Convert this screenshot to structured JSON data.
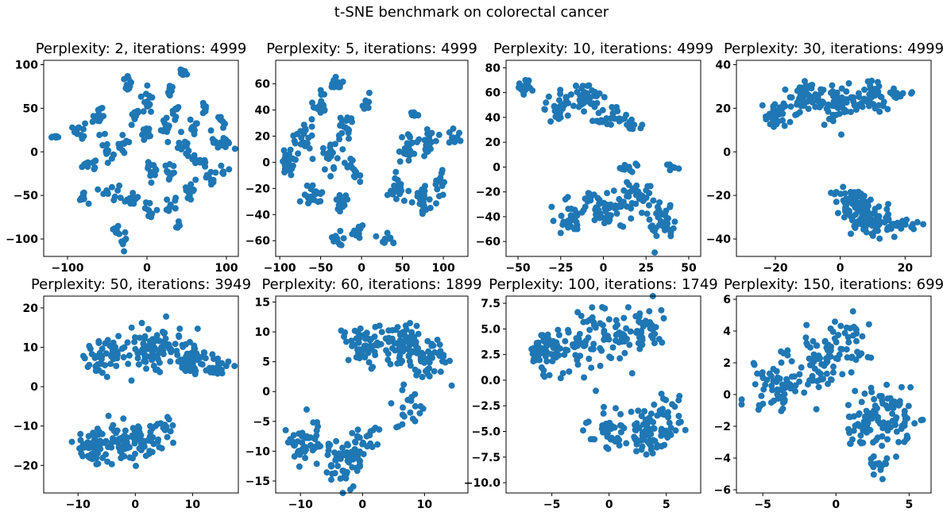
{
  "figure": {
    "suptitle": "t-SNE benchmark on colorectal cancer",
    "marker_color": "#1f77b4"
  },
  "chart_data": [
    {
      "type": "scatter",
      "title": "Perplexity: 2, iterations: 4999",
      "xlim": [
        -130,
        115
      ],
      "ylim": [
        -120,
        105
      ],
      "xticks": [
        -100,
        0,
        100
      ],
      "yticks": [
        -100,
        -50,
        0,
        50,
        100
      ],
      "clusters": [
        {
          "cx": -115,
          "cy": 17,
          "sx": 4,
          "sy": 2,
          "n": 6
        },
        {
          "cx": -85,
          "cy": 25,
          "sx": 6,
          "sy": 8,
          "n": 14
        },
        {
          "cx": -75,
          "cy": -15,
          "sx": 10,
          "sy": 6,
          "n": 12
        },
        {
          "cx": -80,
          "cy": -50,
          "sx": 6,
          "sy": 10,
          "n": 10
        },
        {
          "cx": -60,
          "cy": 40,
          "sx": 8,
          "sy": 12,
          "n": 14
        },
        {
          "cx": -50,
          "cy": 0,
          "sx": 8,
          "sy": 10,
          "n": 14
        },
        {
          "cx": -45,
          "cy": -45,
          "sx": 8,
          "sy": 8,
          "n": 12
        },
        {
          "cx": -40,
          "cy": -90,
          "sx": 8,
          "sy": 5,
          "n": 8
        },
        {
          "cx": -30,
          "cy": 10,
          "sx": 6,
          "sy": 10,
          "n": 10
        },
        {
          "cx": -25,
          "cy": 80,
          "sx": 6,
          "sy": 10,
          "n": 10
        },
        {
          "cx": -20,
          "cy": -55,
          "sx": 8,
          "sy": 6,
          "n": 10
        },
        {
          "cx": -30,
          "cy": -105,
          "sx": 4,
          "sy": 5,
          "n": 5
        },
        {
          "cx": -15,
          "cy": 40,
          "sx": 6,
          "sy": 12,
          "n": 12
        },
        {
          "cx": 0,
          "cy": 60,
          "sx": 6,
          "sy": 12,
          "n": 12
        },
        {
          "cx": 0,
          "cy": 20,
          "sx": 6,
          "sy": 6,
          "n": 10
        },
        {
          "cx": 5,
          "cy": -20,
          "sx": 6,
          "sy": 10,
          "n": 12
        },
        {
          "cx": 5,
          "cy": -65,
          "sx": 6,
          "sy": 8,
          "n": 10
        },
        {
          "cx": 25,
          "cy": 25,
          "sx": 6,
          "sy": 10,
          "n": 12
        },
        {
          "cx": 30,
          "cy": -25,
          "sx": 6,
          "sy": 10,
          "n": 12
        },
        {
          "cx": 30,
          "cy": 70,
          "sx": 6,
          "sy": 6,
          "n": 8
        },
        {
          "cx": 35,
          "cy": 45,
          "sx": 6,
          "sy": 6,
          "n": 8
        },
        {
          "cx": 30,
          "cy": -60,
          "sx": 8,
          "sy": 8,
          "n": 10
        },
        {
          "cx": 40,
          "cy": -85,
          "sx": 5,
          "sy": 4,
          "n": 6
        },
        {
          "cx": 45,
          "cy": 5,
          "sx": 6,
          "sy": 10,
          "n": 12
        },
        {
          "cx": 45,
          "cy": 90,
          "sx": 6,
          "sy": 4,
          "n": 8
        },
        {
          "cx": 55,
          "cy": -45,
          "sx": 6,
          "sy": 10,
          "n": 12
        },
        {
          "cx": 60,
          "cy": 30,
          "sx": 6,
          "sy": 10,
          "n": 12
        },
        {
          "cx": 65,
          "cy": -10,
          "sx": 6,
          "sy": 8,
          "n": 10
        },
        {
          "cx": 75,
          "cy": 50,
          "sx": 6,
          "sy": 6,
          "n": 8
        },
        {
          "cx": 80,
          "cy": -30,
          "sx": 6,
          "sy": 8,
          "n": 10
        },
        {
          "cx": 85,
          "cy": 15,
          "sx": 6,
          "sy": 8,
          "n": 10
        },
        {
          "cx": 95,
          "cy": 35,
          "sx": 5,
          "sy": 5,
          "n": 8
        },
        {
          "cx": 100,
          "cy": 10,
          "sx": 6,
          "sy": 6,
          "n": 10
        },
        {
          "cx": 95,
          "cy": -20,
          "sx": 5,
          "sy": 5,
          "n": 6
        }
      ]
    },
    {
      "type": "scatter",
      "title": "Perplexity: 5, iterations: 4999",
      "xlim": [
        -105,
        130
      ],
      "ylim": [
        -72,
        78
      ],
      "xticks": [
        -100,
        -50,
        0,
        50,
        100
      ],
      "yticks": [
        -60,
        -40,
        -20,
        0,
        20,
        40,
        60
      ],
      "clusters": [
        {
          "cx": -90,
          "cy": 0,
          "sx": 8,
          "sy": 10,
          "n": 22
        },
        {
          "cx": -70,
          "cy": 20,
          "sx": 10,
          "sy": 10,
          "n": 22
        },
        {
          "cx": -60,
          "cy": -25,
          "sx": 10,
          "sy": 8,
          "n": 20
        },
        {
          "cx": -50,
          "cy": 45,
          "sx": 8,
          "sy": 8,
          "n": 16
        },
        {
          "cx": -40,
          "cy": 5,
          "sx": 10,
          "sy": 10,
          "n": 22
        },
        {
          "cx": -30,
          "cy": 60,
          "sx": 10,
          "sy": 6,
          "n": 14
        },
        {
          "cx": -25,
          "cy": -30,
          "sx": 8,
          "sy": 6,
          "n": 14
        },
        {
          "cx": -20,
          "cy": 25,
          "sx": 8,
          "sy": 10,
          "n": 18
        },
        {
          "cx": -10,
          "cy": -5,
          "sx": 8,
          "sy": 10,
          "n": 14
        },
        {
          "cx": -30,
          "cy": -60,
          "sx": 6,
          "sy": 5,
          "n": 10
        },
        {
          "cx": -5,
          "cy": -52,
          "sx": 6,
          "sy": 5,
          "n": 10
        },
        {
          "cx": 5,
          "cy": 45,
          "sx": 6,
          "sy": 5,
          "n": 8
        },
        {
          "cx": 30,
          "cy": -58,
          "sx": 10,
          "sy": 4,
          "n": 10
        },
        {
          "cx": 45,
          "cy": -20,
          "sx": 10,
          "sy": 10,
          "n": 22
        },
        {
          "cx": 55,
          "cy": 10,
          "sx": 10,
          "sy": 10,
          "n": 22
        },
        {
          "cx": 65,
          "cy": 38,
          "sx": 6,
          "sy": 4,
          "n": 8
        },
        {
          "cx": 75,
          "cy": -30,
          "sx": 10,
          "sy": 10,
          "n": 24
        },
        {
          "cx": 80,
          "cy": 15,
          "sx": 10,
          "sy": 10,
          "n": 20
        },
        {
          "cx": 95,
          "cy": -15,
          "sx": 6,
          "sy": 10,
          "n": 12
        },
        {
          "cx": 115,
          "cy": 20,
          "sx": 6,
          "sy": 6,
          "n": 12
        }
      ]
    },
    {
      "type": "scatter",
      "title": "Perplexity: 10, iterations: 4999",
      "xlim": [
        -57,
        57
      ],
      "ylim": [
        -72,
        86
      ],
      "xticks": [
        -50,
        -25,
        0,
        25,
        50
      ],
      "yticks": [
        -60,
        -40,
        -20,
        0,
        20,
        40,
        60,
        80
      ],
      "clusters": [
        {
          "cx": -45,
          "cy": 65,
          "sx": 5,
          "sy": 6,
          "n": 26
        },
        {
          "cx": -25,
          "cy": 50,
          "sx": 8,
          "sy": 10,
          "n": 34
        },
        {
          "cx": -10,
          "cy": 55,
          "sx": 8,
          "sy": 10,
          "n": 40
        },
        {
          "cx": 5,
          "cy": 40,
          "sx": 8,
          "sy": 8,
          "n": 24
        },
        {
          "cx": 18,
          "cy": 32,
          "sx": 4,
          "sy": 6,
          "n": 10
        },
        {
          "cx": -20,
          "cy": -40,
          "sx": 8,
          "sy": 10,
          "n": 34
        },
        {
          "cx": 0,
          "cy": -35,
          "sx": 10,
          "sy": 12,
          "n": 48
        },
        {
          "cx": 20,
          "cy": -25,
          "sx": 10,
          "sy": 12,
          "n": 40
        },
        {
          "cx": 35,
          "cy": -45,
          "sx": 8,
          "sy": 12,
          "n": 38
        },
        {
          "cx": 15,
          "cy": 0,
          "sx": 4,
          "sy": 4,
          "n": 10
        },
        {
          "cx": 40,
          "cy": 0,
          "sx": 4,
          "sy": 4,
          "n": 8
        }
      ]
    },
    {
      "type": "scatter",
      "title": "Perplexity: 30, iterations: 4999",
      "xlim": [
        -32,
        28
      ],
      "ylim": [
        -48,
        42
      ],
      "xticks": [
        -20,
        0,
        20
      ],
      "yticks": [
        -40,
        -20,
        0,
        20,
        40
      ],
      "clusters": [
        {
          "cx": -20,
          "cy": 17,
          "sx": 4,
          "sy": 5,
          "n": 40
        },
        {
          "cx": -10,
          "cy": 25,
          "sx": 5,
          "sy": 6,
          "n": 55
        },
        {
          "cx": 0,
          "cy": 22,
          "sx": 5,
          "sy": 7,
          "n": 55
        },
        {
          "cx": 10,
          "cy": 25,
          "sx": 5,
          "sy": 5,
          "n": 40
        },
        {
          "cx": 18,
          "cy": 26,
          "sx": 3,
          "sy": 3,
          "n": 12
        },
        {
          "cx": 0,
          "cy": -20,
          "sx": 3,
          "sy": 4,
          "n": 12
        },
        {
          "cx": 5,
          "cy": -25,
          "sx": 5,
          "sy": 6,
          "n": 50
        },
        {
          "cx": 10,
          "cy": -32,
          "sx": 6,
          "sy": 6,
          "n": 60
        },
        {
          "cx": 20,
          "cy": -34,
          "sx": 4,
          "sy": 4,
          "n": 20
        }
      ]
    },
    {
      "type": "scatter",
      "title": "Perplexity: 50, iterations: 3949",
      "xlim": [
        -16,
        18
      ],
      "ylim": [
        -27,
        23
      ],
      "xticks": [
        -10,
        0,
        10
      ],
      "yticks": [
        -20,
        -10,
        0,
        10,
        20
      ],
      "clusters": [
        {
          "cx": -5,
          "cy": 8,
          "sx": 3,
          "sy": 5,
          "n": 50
        },
        {
          "cx": 3,
          "cy": 10,
          "sx": 4,
          "sy": 5,
          "n": 80
        },
        {
          "cx": 10,
          "cy": 7,
          "sx": 3,
          "sy": 4,
          "n": 55
        },
        {
          "cx": 14,
          "cy": 5,
          "sx": 2,
          "sy": 2,
          "n": 20
        },
        {
          "cx": -7,
          "cy": -15,
          "sx": 4,
          "sy": 4,
          "n": 70
        },
        {
          "cx": 0,
          "cy": -14,
          "sx": 4,
          "sy": 4,
          "n": 70
        },
        {
          "cx": 5,
          "cy": -10,
          "sx": 2,
          "sy": 2,
          "n": 14
        }
      ]
    },
    {
      "type": "scatter",
      "title": "Perplexity: 60, iterations: 1899",
      "xlim": [
        -14,
        17
      ],
      "ylim": [
        -17,
        16
      ],
      "xticks": [
        -10,
        0,
        10
      ],
      "yticks": [
        -15,
        -10,
        -5,
        0,
        5,
        10,
        15
      ],
      "clusters": [
        {
          "cx": 0,
          "cy": 8,
          "sx": 3,
          "sy": 3,
          "n": 50
        },
        {
          "cx": 6,
          "cy": 8,
          "sx": 3,
          "sy": 3,
          "n": 70
        },
        {
          "cx": 11,
          "cy": 5,
          "sx": 2.5,
          "sy": 3,
          "n": 40
        },
        {
          "cx": 7,
          "cy": -3,
          "sx": 2,
          "sy": 2.5,
          "n": 20
        },
        {
          "cx": -9,
          "cy": -8,
          "sx": 3,
          "sy": 3,
          "n": 50
        },
        {
          "cx": -3,
          "cy": -11,
          "sx": 3,
          "sy": 3,
          "n": 70
        },
        {
          "cx": 1,
          "cy": -8,
          "sx": 2,
          "sy": 2,
          "n": 16
        }
      ]
    },
    {
      "type": "scatter",
      "title": "Perplexity: 100, iterations: 1749",
      "xlim": [
        -9,
        8
      ],
      "ylim": [
        -11,
        8.2
      ],
      "xticks": [
        -5,
        0,
        5
      ],
      "yticks": [
        -10.0,
        -7.5,
        -5.0,
        -2.5,
        0.0,
        2.5,
        5.0,
        7.5
      ],
      "yticklabels": [
        "−10.0",
        "−7.5",
        "−5.0",
        "−2.5",
        "0.0",
        "2.5",
        "5.0",
        "7.5"
      ],
      "clusters": [
        {
          "cx": -5,
          "cy": 3,
          "sx": 1.8,
          "sy": 2,
          "n": 70
        },
        {
          "cx": -1,
          "cy": 4,
          "sx": 2,
          "sy": 2,
          "n": 70
        },
        {
          "cx": 3,
          "cy": 5,
          "sx": 1.5,
          "sy": 1.8,
          "n": 40
        },
        {
          "cx": 0,
          "cy": -5,
          "sx": 1.5,
          "sy": 1.8,
          "n": 40
        },
        {
          "cx": 3.5,
          "cy": -5,
          "sx": 1.8,
          "sy": 2,
          "n": 70
        },
        {
          "cx": 5.5,
          "cy": -3,
          "sx": 1,
          "sy": 2,
          "n": 20
        }
      ]
    },
    {
      "type": "scatter",
      "title": "Perplexity: 150, iterations: 699",
      "xlim": [
        -6.8,
        6.5
      ],
      "ylim": [
        -6.2,
        6.2
      ],
      "xticks": [
        -5,
        0,
        5
      ],
      "yticks": [
        -6,
        -4,
        -2,
        0,
        2,
        4,
        6
      ],
      "clusters": [
        {
          "cx": -4,
          "cy": 0.5,
          "sx": 1.5,
          "sy": 1.6,
          "n": 60
        },
        {
          "cx": -1,
          "cy": 2,
          "sx": 1.5,
          "sy": 1.6,
          "n": 70
        },
        {
          "cx": 1,
          "cy": 3.5,
          "sx": 1.2,
          "sy": 1.2,
          "n": 30
        },
        {
          "cx": 2,
          "cy": -1.5,
          "sx": 1.3,
          "sy": 1.5,
          "n": 60
        },
        {
          "cx": 4,
          "cy": -1.5,
          "sx": 1.2,
          "sy": 1.6,
          "n": 50
        },
        {
          "cx": 3,
          "cy": -4.5,
          "sx": 1,
          "sy": 0.8,
          "n": 16
        }
      ]
    }
  ]
}
